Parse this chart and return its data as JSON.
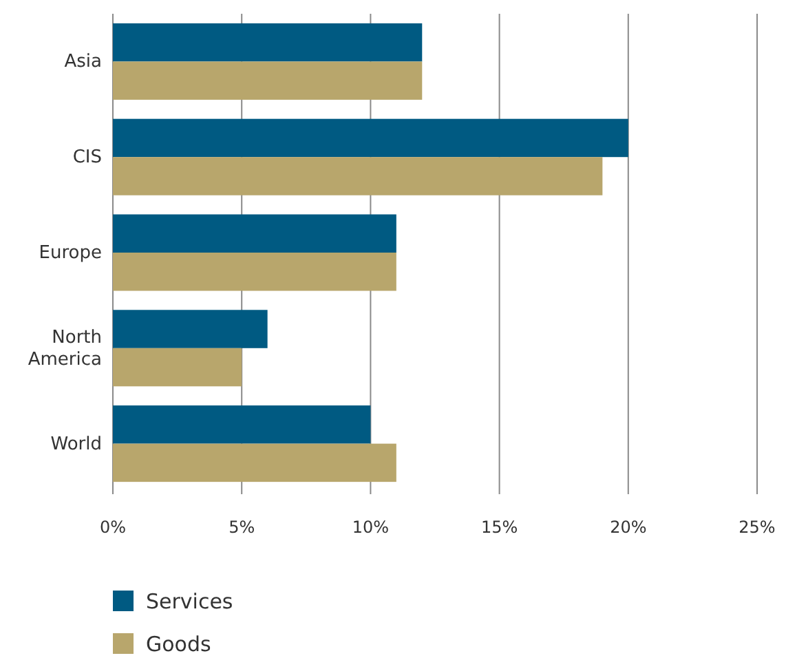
{
  "chart_data": {
    "type": "bar",
    "orientation": "horizontal",
    "categories": [
      "Asia",
      "CIS",
      "Europe",
      "North America",
      "World"
    ],
    "series": [
      {
        "name": "Services",
        "color": "#005a82",
        "values": [
          12,
          20,
          11,
          6,
          10
        ]
      },
      {
        "name": "Goods",
        "color": "#b8a66c",
        "values": [
          12,
          19,
          11,
          5,
          11
        ]
      }
    ],
    "xlim": [
      0,
      25
    ],
    "xticks": [
      {
        "value": 0,
        "label": "0%"
      },
      {
        "value": 5,
        "label": "5%"
      },
      {
        "value": 10,
        "label": "10%"
      },
      {
        "value": 15,
        "label": "15%"
      },
      {
        "value": 20,
        "label": "20%"
      },
      {
        "value": 25,
        "label": "25%"
      }
    ],
    "grid": "x",
    "legend": "bottom left"
  }
}
